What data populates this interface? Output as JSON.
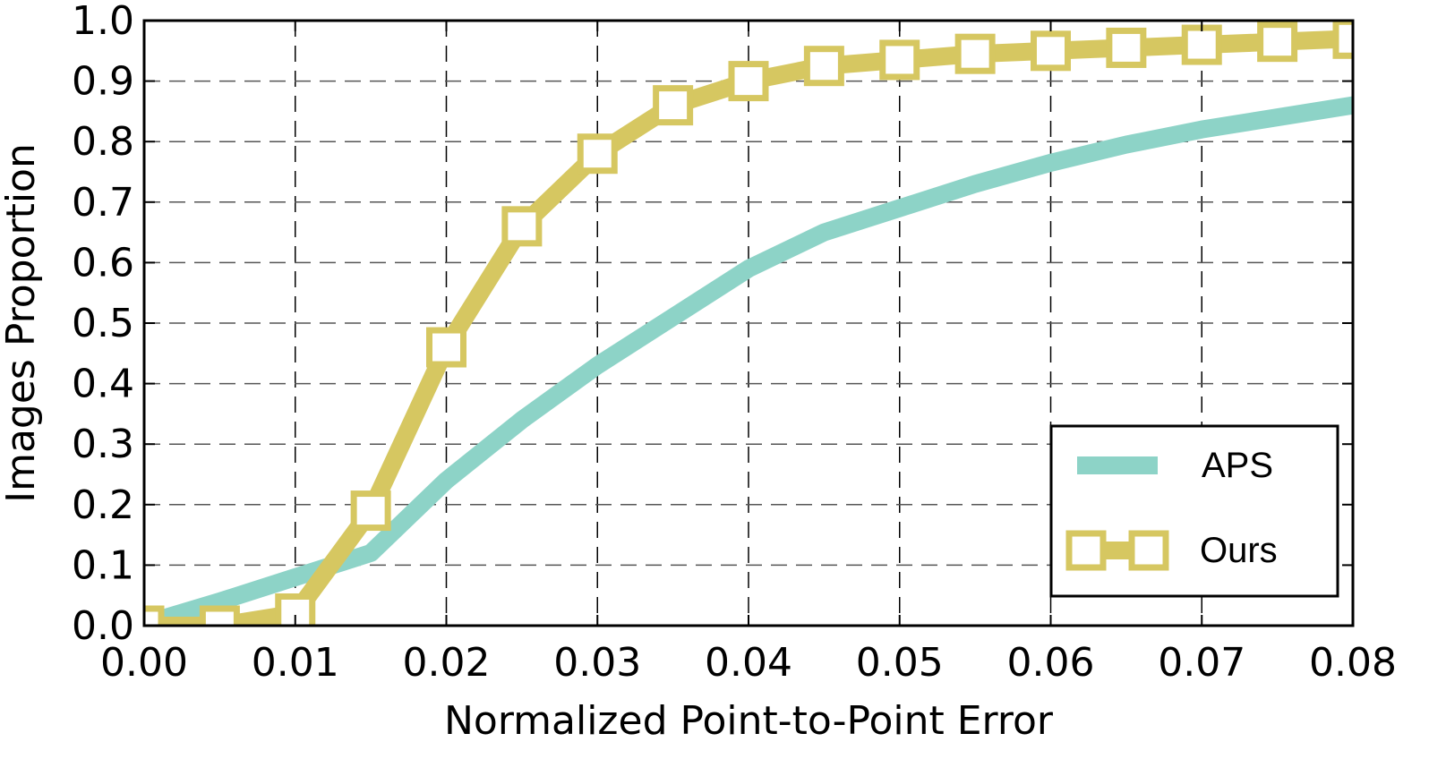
{
  "chart_data": {
    "type": "line",
    "title": "",
    "xlabel": "Normalized Point-to-Point Error",
    "ylabel": "Images Proportion",
    "xlim": [
      0.0,
      0.08
    ],
    "ylim": [
      0.0,
      1.0
    ],
    "grid": true,
    "legend_position": "bottom-right",
    "x_ticks": [
      "0.00",
      "0.01",
      "0.02",
      "0.03",
      "0.04",
      "0.05",
      "0.06",
      "0.07",
      "0.08"
    ],
    "y_ticks": [
      "0.0",
      "0.1",
      "0.2",
      "0.3",
      "0.4",
      "0.5",
      "0.6",
      "0.7",
      "0.8",
      "0.9",
      "1.0"
    ],
    "series": [
      {
        "name": "APS",
        "color": "#8dd3c7",
        "marker": "none",
        "x": [
          0.001,
          0.005,
          0.01,
          0.015,
          0.02,
          0.025,
          0.03,
          0.035,
          0.04,
          0.045,
          0.05,
          0.055,
          0.06,
          0.065,
          0.07,
          0.075,
          0.08
        ],
        "y": [
          0.01,
          0.04,
          0.08,
          0.12,
          0.24,
          0.34,
          0.43,
          0.51,
          0.59,
          0.65,
          0.69,
          0.73,
          0.765,
          0.795,
          0.82,
          0.84,
          0.86
        ]
      },
      {
        "name": "Ours",
        "color": "#d6c761",
        "marker": "square",
        "x": [
          0.0,
          0.005,
          0.01,
          0.015,
          0.02,
          0.025,
          0.03,
          0.035,
          0.04,
          0.045,
          0.05,
          0.055,
          0.06,
          0.065,
          0.07,
          0.075,
          0.08
        ],
        "y": [
          0.0,
          0.0,
          0.02,
          0.19,
          0.46,
          0.66,
          0.78,
          0.86,
          0.9,
          0.925,
          0.935,
          0.945,
          0.95,
          0.955,
          0.96,
          0.965,
          0.97
        ]
      }
    ]
  }
}
